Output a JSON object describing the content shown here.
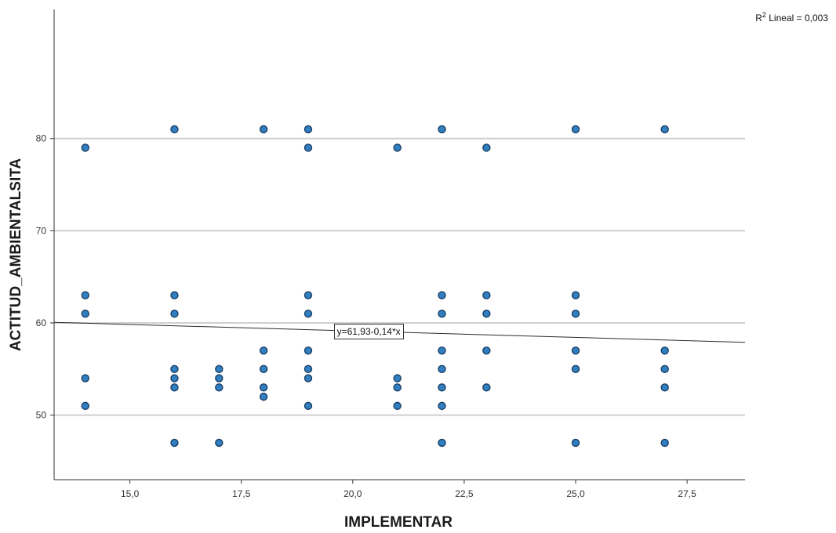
{
  "chart_data": {
    "type": "scatter",
    "xlabel": "IMPLEMENTAR",
    "ylabel": "ACTITUD_AMBIENTALSITA",
    "xlim": [
      13.3,
      28.8
    ],
    "ylim": [
      43,
      94
    ],
    "x_ticks": [
      "15,0",
      "17,5",
      "20,0",
      "22,5",
      "25,0",
      "27,5"
    ],
    "x_tick_values": [
      15,
      17.5,
      20,
      22.5,
      25,
      27.5
    ],
    "y_ticks": [
      "50",
      "60",
      "70",
      "80"
    ],
    "y_tick_values": [
      50,
      60,
      70,
      80
    ],
    "grid": "horizontal",
    "marker_color": "#2f7fc1",
    "marker_edge_color": "#1c3f66",
    "points": [
      [
        14,
        79
      ],
      [
        14,
        63
      ],
      [
        14,
        61
      ],
      [
        14,
        54
      ],
      [
        14,
        51
      ],
      [
        16,
        81
      ],
      [
        16,
        63
      ],
      [
        16,
        61
      ],
      [
        16,
        55
      ],
      [
        16,
        54
      ],
      [
        16,
        53
      ],
      [
        16,
        47
      ],
      [
        17,
        55
      ],
      [
        17,
        54
      ],
      [
        17,
        53
      ],
      [
        17,
        47
      ],
      [
        18,
        81
      ],
      [
        18,
        57
      ],
      [
        18,
        55
      ],
      [
        18,
        53
      ],
      [
        18,
        52
      ],
      [
        19,
        81
      ],
      [
        19,
        79
      ],
      [
        19,
        63
      ],
      [
        19,
        61
      ],
      [
        19,
        57
      ],
      [
        19,
        55
      ],
      [
        19,
        54
      ],
      [
        19,
        51
      ],
      [
        21,
        79
      ],
      [
        21,
        54
      ],
      [
        21,
        53
      ],
      [
        21,
        51
      ],
      [
        22,
        81
      ],
      [
        22,
        63
      ],
      [
        22,
        61
      ],
      [
        22,
        57
      ],
      [
        22,
        55
      ],
      [
        22,
        53
      ],
      [
        22,
        51
      ],
      [
        22,
        47
      ],
      [
        23,
        79
      ],
      [
        23,
        63
      ],
      [
        23,
        61
      ],
      [
        23,
        57
      ],
      [
        23,
        53
      ],
      [
        25,
        81
      ],
      [
        25,
        63
      ],
      [
        25,
        61
      ],
      [
        25,
        57
      ],
      [
        25,
        55
      ],
      [
        25,
        47
      ],
      [
        27,
        81
      ],
      [
        27,
        57
      ],
      [
        27,
        55
      ],
      [
        27,
        53
      ],
      [
        27,
        47
      ]
    ],
    "fit_line": {
      "intercept": 61.93,
      "slope": -0.14,
      "label": "y=61,93-0,14*x",
      "label_x": 20.7
    },
    "r2_label": {
      "prefix": "R",
      "sup": "2",
      "text": " Lineal = 0,003"
    }
  }
}
